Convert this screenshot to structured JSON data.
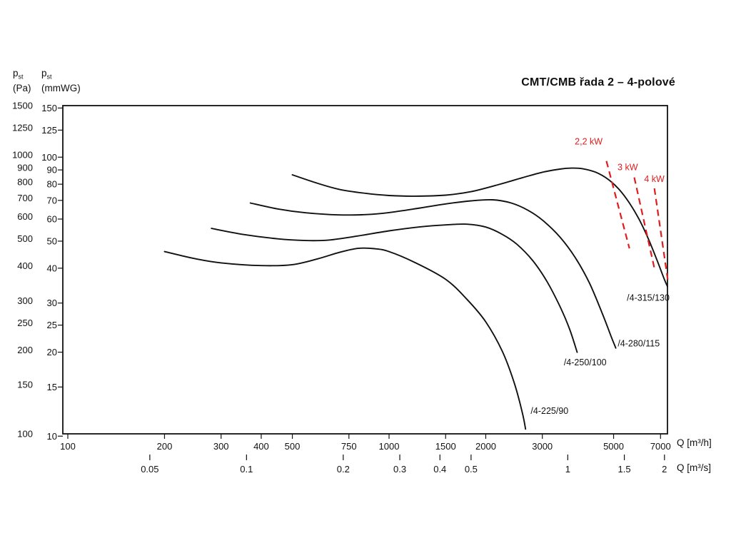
{
  "page": {
    "title": "CMT/CMB řada 2 – 4-polové"
  },
  "axis_headers": {
    "p_main": "p",
    "p_sub": "st",
    "pa_unit": "(Pa)",
    "mmwg_unit": "(mmWG)"
  },
  "x_unit_labels": {
    "m3h": "Q [m³/h]",
    "m3s": "Q [m³/s]"
  },
  "colors": {
    "text": "#111111",
    "curve": "#111111",
    "power_line": "#e01c1c"
  },
  "chart_data": {
    "type": "line",
    "title": "CMT/CMB řada 2 – 4-polové",
    "subtitle": "Fan performance curves, static pressure vs. flow, log-log axes",
    "x_axis": {
      "scale": "log",
      "unit_primary": "m³/h",
      "unit_secondary": "m³/s",
      "range_m3h": [
        96,
        7400
      ],
      "ticks_m3h": [
        100,
        200,
        300,
        400,
        500,
        750,
        1000,
        1500,
        2000,
        3000,
        5000,
        7000
      ],
      "ticks_m3s": [
        0.05,
        0.1,
        0.2,
        0.3,
        0.4,
        0.5,
        1,
        1.5,
        2
      ],
      "m3s_to_m3h": 3600
    },
    "y_axis": {
      "scale": "log",
      "unit_primary": "Pa",
      "unit_secondary": "mmWG",
      "range_pa": [
        100,
        1500
      ],
      "ticks_pa": [
        100,
        150,
        200,
        250,
        300,
        400,
        500,
        600,
        700,
        800,
        900,
        1000,
        1250,
        1500
      ],
      "ticks_mmwg": [
        10,
        15,
        20,
        25,
        30,
        40,
        50,
        60,
        70,
        80,
        90,
        100,
        125,
        150
      ],
      "mmwg_to_pa": 9.81
    },
    "grid": false,
    "series": [
      {
        "name": "/4-225/90",
        "label_pos": [
          2760,
          118
        ],
        "points": [
          [
            200,
            450
          ],
          [
            250,
            424
          ],
          [
            300,
            410
          ],
          [
            400,
            401
          ],
          [
            500,
            404
          ],
          [
            600,
            424
          ],
          [
            700,
            447
          ],
          [
            800,
            462
          ],
          [
            900,
            461
          ],
          [
            1000,
            450
          ],
          [
            1200,
            412
          ],
          [
            1500,
            358
          ],
          [
            1750,
            303
          ],
          [
            2000,
            252
          ],
          [
            2250,
            198
          ],
          [
            2450,
            153
          ],
          [
            2600,
            119
          ],
          [
            2660,
            104
          ]
        ]
      },
      {
        "name": "/4-250/100",
        "label_pos": [
          3500,
          176
        ],
        "points": [
          [
            280,
            545
          ],
          [
            350,
            519
          ],
          [
            450,
            500
          ],
          [
            550,
            493
          ],
          [
            650,
            495
          ],
          [
            800,
            512
          ],
          [
            1000,
            534
          ],
          [
            1250,
            552
          ],
          [
            1500,
            561
          ],
          [
            1750,
            564
          ],
          [
            2000,
            551
          ],
          [
            2250,
            519
          ],
          [
            2500,
            478
          ],
          [
            2800,
            418
          ],
          [
            3100,
            352
          ],
          [
            3400,
            287
          ],
          [
            3650,
            237
          ],
          [
            3850,
            196
          ]
        ]
      },
      {
        "name": "/4-280/115",
        "label_pos": [
          5150,
          206
        ],
        "points": [
          [
            370,
            672
          ],
          [
            450,
            640
          ],
          [
            550,
            620
          ],
          [
            700,
            609
          ],
          [
            850,
            611
          ],
          [
            1000,
            621
          ],
          [
            1250,
            645
          ],
          [
            1500,
            667
          ],
          [
            1800,
            684
          ],
          [
            2100,
            690
          ],
          [
            2400,
            672
          ],
          [
            2700,
            634
          ],
          [
            3000,
            584
          ],
          [
            3400,
            508
          ],
          [
            3800,
            428
          ],
          [
            4200,
            348
          ],
          [
            4600,
            272
          ],
          [
            4900,
            225
          ],
          [
            5080,
            203
          ]
        ]
      },
      {
        "name": "/4-315/130",
        "label_pos": [
          5500,
          300
        ],
        "points": [
          [
            500,
            848
          ],
          [
            600,
            790
          ],
          [
            700,
            752
          ],
          [
            850,
            727
          ],
          [
            1000,
            715
          ],
          [
            1200,
            711
          ],
          [
            1500,
            717
          ],
          [
            1800,
            738
          ],
          [
            2200,
            783
          ],
          [
            2600,
            828
          ],
          [
            3000,
            866
          ],
          [
            3400,
            889
          ],
          [
            3700,
            896
          ],
          [
            4000,
            892
          ],
          [
            4400,
            866
          ],
          [
            4800,
            818
          ],
          [
            5200,
            752
          ],
          [
            5600,
            672
          ],
          [
            6000,
            588
          ],
          [
            6400,
            503
          ],
          [
            6800,
            424
          ],
          [
            7200,
            357
          ],
          [
            7360,
            337
          ]
        ]
      }
    ],
    "power_lines": [
      {
        "label": "2,2 kW",
        "points": [
          [
            4750,
            950
          ],
          [
            5600,
            462
          ]
        ],
        "label_pos": [
          4620,
          1090
        ],
        "label_anchor": "end"
      },
      {
        "label": "3 kW",
        "points": [
          [
            5800,
            830
          ],
          [
            6700,
            392
          ]
        ],
        "label_pos": [
          5950,
          880
        ],
        "label_anchor": "end"
      },
      {
        "label": "4 kW",
        "points": [
          [
            6700,
            758
          ],
          [
            7400,
            346
          ]
        ],
        "label_pos": [
          7200,
          800
        ],
        "label_anchor": "end"
      }
    ]
  }
}
